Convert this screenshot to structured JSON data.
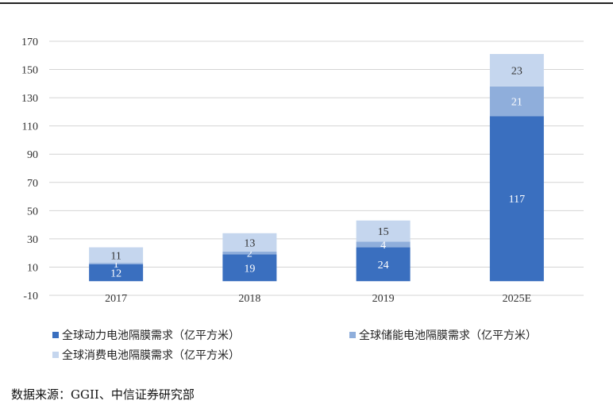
{
  "chart_data": {
    "type": "bar",
    "stacked": true,
    "categories": [
      "2017",
      "2018",
      "2019",
      "2025E"
    ],
    "series": [
      {
        "name": "全球动力电池隔膜需求（亿平方米）",
        "values": [
          12,
          19,
          24,
          117
        ],
        "color": "#3a6fbf",
        "label_color": "#ffffff"
      },
      {
        "name": "全球储能电池隔膜需求（亿平方米）",
        "values": [
          1,
          2,
          4,
          21
        ],
        "color": "#8faedb",
        "label_color": "#ffffff"
      },
      {
        "name": "全球消费电池隔膜需求（亿平方米）",
        "values": [
          11,
          13,
          15,
          23
        ],
        "color": "#c5d6ee",
        "label_color": "#333333"
      }
    ],
    "yticks": [
      -10,
      10,
      30,
      50,
      70,
      90,
      110,
      130,
      150,
      170
    ],
    "ylim": [
      -10,
      170
    ],
    "grid": true,
    "legend_position": "bottom"
  },
  "source_text": "数据来源：GGII、中信证券研究部"
}
